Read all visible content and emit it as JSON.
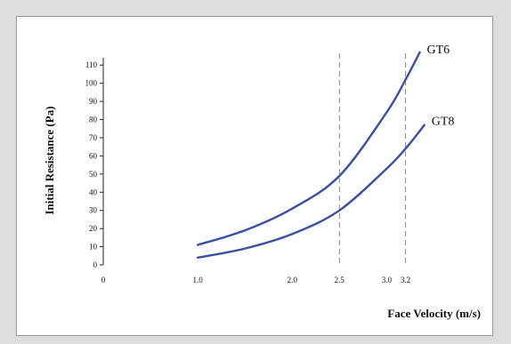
{
  "chart_data": {
    "type": "line",
    "title": "",
    "xlabel": "Face Velocity (m/s)",
    "ylabel": "Initial Resistance (Pa)",
    "xlim": [
      0,
      3.6
    ],
    "ylim": [
      0,
      115
    ],
    "x_ticks": [
      0,
      1.0,
      2.0,
      2.5,
      3.0,
      3.2
    ],
    "x_tick_labels": [
      "0",
      "1.0",
      "2.0",
      "2.5",
      "3.0",
      "3.2"
    ],
    "y_ticks": [
      0,
      10,
      20,
      30,
      40,
      50,
      60,
      70,
      80,
      90,
      100,
      110
    ],
    "vertical_dashed_lines": [
      2.5,
      3.2
    ],
    "grid": false,
    "line_color": "#3a4fa0",
    "series": [
      {
        "name": "GT6",
        "x": [
          1.0,
          1.5,
          2.0,
          2.5,
          3.0,
          3.2,
          3.35
        ],
        "y": [
          11,
          19,
          31,
          49,
          84,
          102,
          117
        ]
      },
      {
        "name": "GT8",
        "x": [
          1.0,
          1.5,
          2.0,
          2.5,
          3.0,
          3.2,
          3.4
        ],
        "y": [
          4,
          9,
          17,
          30,
          53,
          64,
          77
        ]
      }
    ]
  }
}
